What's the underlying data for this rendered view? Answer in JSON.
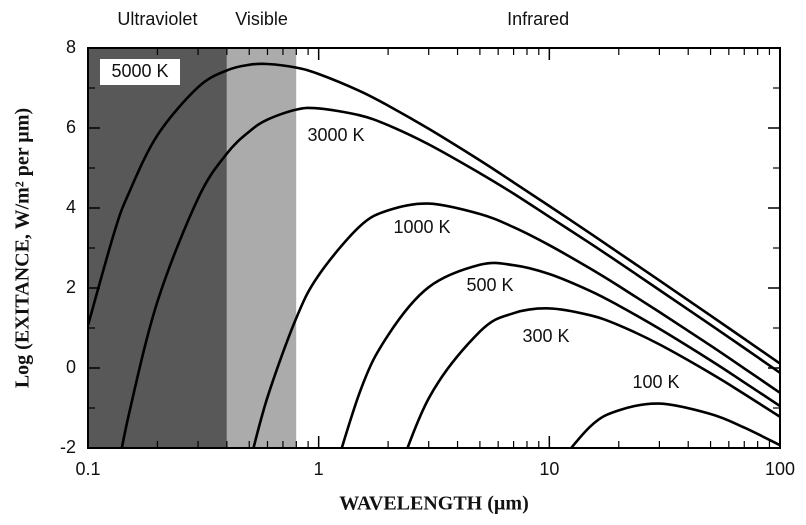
{
  "chart_data": {
    "type": "line",
    "xlabel": "WAVELENGTH (µm)",
    "ylabel": "Log (EXITANCE, W/m² per µm)",
    "xscale": "log",
    "x": [
      0.1,
      0.13,
      0.15,
      0.2,
      0.3,
      0.4,
      0.5,
      0.6,
      0.8,
      1,
      1.5,
      2,
      3,
      5,
      7,
      10,
      15,
      20,
      30,
      50,
      70,
      100
    ],
    "series": [
      {
        "name": "5000 K",
        "color": "#000000",
        "values": [
          1.07,
          3.39,
          4.36,
          5.82,
          7.02,
          7.44,
          7.58,
          7.6,
          7.51,
          7.35,
          6.93,
          6.56,
          5.98,
          5.19,
          4.64,
          4.05,
          3.37,
          2.88,
          2.19,
          1.31,
          0.73,
          0.11
        ]
      },
      {
        "name": "3000 K",
        "color": "#000000",
        "values": [
          null,
          -3.02,
          -1.19,
          1.66,
          4.24,
          5.36,
          5.91,
          6.21,
          6.46,
          6.49,
          6.32,
          6.07,
          5.59,
          4.87,
          4.36,
          3.78,
          3.12,
          2.64,
          1.95,
          1.08,
          0.5,
          -0.12
        ]
      },
      {
        "name": "1000 K",
        "color": "#000000",
        "values": [
          null,
          null,
          null,
          null,
          null,
          null,
          -2.42,
          -0.73,
          1.25,
          2.32,
          3.53,
          3.94,
          4.11,
          3.85,
          3.52,
          3.07,
          2.49,
          2.05,
          1.4,
          0.56,
          -0.01,
          -0.62
        ]
      },
      {
        "name": "500 K",
        "color": "#000000",
        "values": [
          null,
          null,
          null,
          null,
          null,
          null,
          null,
          null,
          null,
          -3.93,
          -0.64,
          0.82,
          2.02,
          2.58,
          2.57,
          2.35,
          1.93,
          1.56,
          0.98,
          0.19,
          -0.36,
          -0.95
        ]
      },
      {
        "name": "300 K",
        "color": "#000000",
        "values": [
          null,
          null,
          null,
          null,
          null,
          null,
          null,
          null,
          null,
          null,
          null,
          -3.34,
          -0.76,
          0.91,
          1.37,
          1.49,
          1.32,
          1.07,
          0.59,
          -0.13,
          -0.65,
          -1.22
        ]
      },
      {
        "name": "100 K",
        "color": "#000000",
        "values": [
          null,
          null,
          null,
          null,
          null,
          null,
          null,
          null,
          null,
          null,
          null,
          null,
          null,
          null,
          null,
          -2.68,
          -1.47,
          -1.06,
          -0.89,
          -1.15,
          -1.49,
          -1.93
        ]
      }
    ],
    "regions": [
      {
        "name": "Ultraviolet",
        "range": [
          0.1,
          0.4
        ],
        "color": "#585858"
      },
      {
        "name": "Visible",
        "range": [
          0.4,
          0.8
        ],
        "color": "#ababab"
      },
      {
        "name": "Infrared",
        "range": [
          0.8,
          100
        ],
        "color": "#ffffff"
      }
    ],
    "xlim": [
      0.1,
      100
    ],
    "xticks": [
      0.1,
      1,
      10,
      100
    ],
    "xticks_minor": [
      0.2,
      0.3,
      0.4,
      0.5,
      0.6,
      0.7,
      0.8,
      0.9,
      2,
      3,
      4,
      5,
      6,
      7,
      8,
      9,
      20,
      30,
      40,
      50,
      60,
      70,
      80,
      90
    ],
    "ylim": [
      -2,
      8
    ],
    "yticks": [
      -2,
      0,
      2,
      4,
      6,
      8
    ],
    "yticks_minor": [
      -1,
      1,
      3,
      5,
      7
    ],
    "grid": false
  }
}
